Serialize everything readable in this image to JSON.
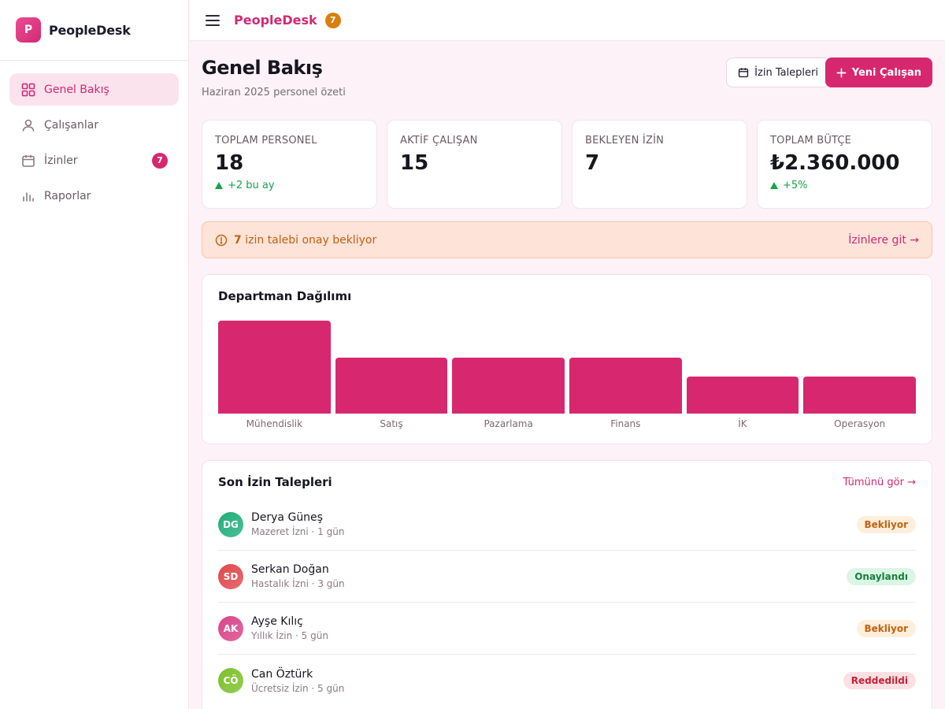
{
  "app": {
    "name": "PeopleDesk",
    "logo_letter": "P"
  },
  "sidebar": {
    "items": [
      {
        "label": "Genel Bakış",
        "icon": "grid-icon",
        "active": true
      },
      {
        "label": "Çalışanlar",
        "icon": "user-icon"
      },
      {
        "label": "İzinler",
        "icon": "calendar-icon",
        "badge": "7"
      },
      {
        "label": "Raporlar",
        "icon": "bar-chart-icon"
      }
    ]
  },
  "topbar": {
    "title": "PeopleDesk",
    "badge": "7"
  },
  "header": {
    "title": "Genel Bakış",
    "subtitle": "Haziran 2025 personel özeti",
    "leave_button": "İzin Talepleri",
    "new_employee_button": "Yeni Çalışan"
  },
  "stats": [
    {
      "label": "TOPLAM PERSONEL",
      "value": "18",
      "delta": "+2 bu ay"
    },
    {
      "label": "AKTİF ÇALIŞAN",
      "value": "15"
    },
    {
      "label": "BEKLEYEN İZİN",
      "value": "7"
    },
    {
      "label": "TOPLAM BÜTÇE",
      "value": "₺2.360.000",
      "delta": "+5%"
    }
  ],
  "alert": {
    "count": "7",
    "text": " izin talebi onay bekliyor",
    "link": "İzinlere git →"
  },
  "department_chart": {
    "title": "Departman Dağılımı"
  },
  "chart_data": {
    "type": "bar",
    "categories": [
      "Mühendislik",
      "Satış",
      "Pazarlama",
      "Finans",
      "İK",
      "Operasyon"
    ],
    "values": [
      5,
      3,
      3,
      3,
      2,
      2
    ],
    "ylim": [
      0,
      5
    ],
    "title": "Departman Dağılımı",
    "grid": false
  },
  "leave_requests": {
    "title": "Son İzin Talepleri",
    "link": "Tümünü gör →",
    "rows": [
      {
        "initials": "DG",
        "name": "Derya Güneş",
        "meta": "Mazeret İzni · 1 gün",
        "status": "Bekliyor",
        "status_kind": "pending",
        "color": "#1fae78"
      },
      {
        "initials": "SD",
        "name": "Serkan Doğan",
        "meta": "Hastalık İzni · 3 gün",
        "status": "Onaylandı",
        "status_kind": "approved",
        "color": "#e0484c"
      },
      {
        "initials": "AK",
        "name": "Ayşe Kılıç",
        "meta": "Yıllık İzin · 5 gün",
        "status": "Bekliyor",
        "status_kind": "pending",
        "color": "#d9448a"
      },
      {
        "initials": "CÖ",
        "name": "Can Öztürk",
        "meta": "Ücretsiz İzin · 5 gün",
        "status": "Reddedildi",
        "status_kind": "rejected",
        "color": "#7cc02a"
      }
    ]
  },
  "colors": {
    "accent": "#d7286f",
    "warning": "#d97f0e",
    "success": "#16a34a"
  }
}
